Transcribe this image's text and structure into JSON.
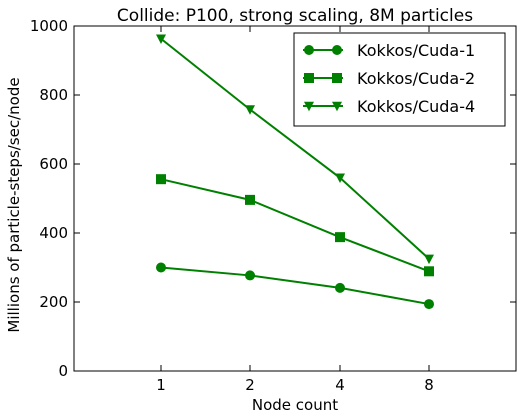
{
  "chart_data": {
    "type": "line",
    "title": "Collide: P100, strong scaling, 8M particles",
    "xlabel": "Node count",
    "ylabel": "Millions of particle-steps/sec/node",
    "categories": [
      "1",
      "2",
      "4",
      "8"
    ],
    "ylim": [
      0,
      1000
    ],
    "yticks": [
      0,
      200,
      400,
      600,
      800,
      1000
    ],
    "grid": false,
    "legend_position": "top-right",
    "color": "#008000",
    "series": [
      {
        "name": "Kokkos/Cuda-1",
        "marker": "circle",
        "values": [
          300,
          277,
          241,
          194
        ]
      },
      {
        "name": "Kokkos/Cuda-2",
        "marker": "square",
        "values": [
          556,
          496,
          388,
          289
        ]
      },
      {
        "name": "Kokkos/Cuda-4",
        "marker": "triangle-down",
        "values": [
          963,
          758,
          560,
          325
        ]
      }
    ]
  }
}
